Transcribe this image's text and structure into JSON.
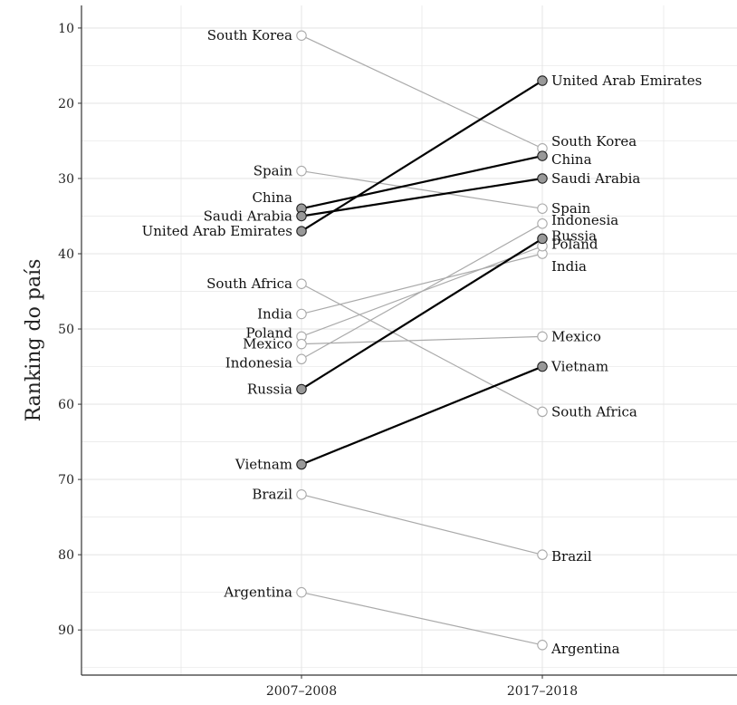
{
  "chart_data": {
    "type": "line",
    "chart_style": "slopegraph",
    "x_categories": [
      "2007–2008",
      "2017–2018"
    ],
    "ylabel": "Ranking do país",
    "y_axis_reversed": true,
    "ylim": [
      96,
      7
    ],
    "y_ticks": [
      10,
      20,
      30,
      40,
      50,
      60,
      70,
      80,
      90
    ],
    "grid": true,
    "colors": {
      "highlight_line": "#000000",
      "highlight_point": "#999999",
      "other_line": "#aaaaaa",
      "other_point": "#ffffff",
      "axis": "#333333",
      "grid": "#e6e6e6"
    },
    "series": [
      {
        "name": "South Korea",
        "values": [
          11,
          26
        ],
        "highlight": false
      },
      {
        "name": "Spain",
        "values": [
          29,
          34
        ],
        "highlight": false
      },
      {
        "name": "China",
        "values": [
          34,
          27
        ],
        "highlight": true
      },
      {
        "name": "Saudi Arabia",
        "values": [
          35,
          30
        ],
        "highlight": true
      },
      {
        "name": "United Arab Emirates",
        "values": [
          37,
          17
        ],
        "highlight": true
      },
      {
        "name": "South Africa",
        "values": [
          44,
          61
        ],
        "highlight": false
      },
      {
        "name": "India",
        "values": [
          48,
          40
        ],
        "highlight": false
      },
      {
        "name": "Poland",
        "values": [
          51,
          39
        ],
        "highlight": false
      },
      {
        "name": "Mexico",
        "values": [
          52,
          51
        ],
        "highlight": false
      },
      {
        "name": "Indonesia",
        "values": [
          54,
          36
        ],
        "highlight": false
      },
      {
        "name": "Russia",
        "values": [
          58,
          38
        ],
        "highlight": true
      },
      {
        "name": "Vietnam",
        "values": [
          68,
          55
        ],
        "highlight": true
      },
      {
        "name": "Brazil",
        "values": [
          72,
          80
        ],
        "highlight": false
      },
      {
        "name": "Argentina",
        "values": [
          85,
          92
        ],
        "highlight": false
      }
    ]
  }
}
